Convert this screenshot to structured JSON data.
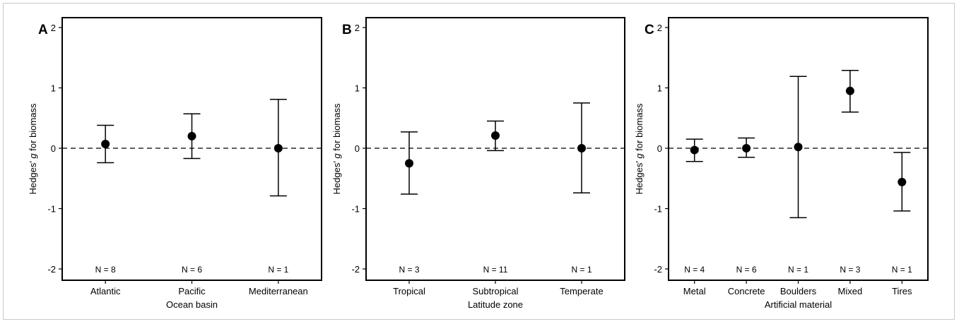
{
  "chart_data": [
    {
      "type": "scatter",
      "panel_label": "A",
      "categories": [
        "Atlantic",
        "Pacific",
        "Mediterranean"
      ],
      "values": [
        0.07,
        0.2,
        0.0
      ],
      "ci_upper": [
        0.38,
        0.57,
        0.81
      ],
      "ci_lower": [
        -0.24,
        -0.17,
        -0.79
      ],
      "n_labels": [
        "N = 8",
        "N = 6",
        "N = 1"
      ],
      "xlabel": "Ocean basin",
      "ylabel_parts": [
        "Hedges' ",
        "g",
        " for biomass"
      ],
      "ylim": [
        -2,
        2
      ],
      "yticks": [
        2,
        1,
        0,
        -1,
        -2
      ],
      "reference_line": 0
    },
    {
      "type": "scatter",
      "panel_label": "B",
      "categories": [
        "Tropical",
        "Subtropical",
        "Temperate"
      ],
      "values": [
        -0.25,
        0.21,
        0.0
      ],
      "ci_upper": [
        0.27,
        0.45,
        0.75
      ],
      "ci_lower": [
        -0.76,
        -0.04,
        -0.74
      ],
      "n_labels": [
        "N = 3",
        "N = 11",
        "N = 1"
      ],
      "xlabel": "Latitude zone",
      "ylabel_parts": [
        "Hedges' ",
        "g",
        " for biomass"
      ],
      "ylim": [
        -2,
        2
      ],
      "yticks": [
        2,
        1,
        0,
        -1,
        -2
      ],
      "reference_line": 0
    },
    {
      "type": "scatter",
      "panel_label": "C",
      "categories": [
        "Metal",
        "Concrete",
        "Boulders",
        "Mixed",
        "Tires"
      ],
      "values": [
        -0.03,
        0.0,
        0.02,
        0.95,
        -0.56
      ],
      "ci_upper": [
        0.15,
        0.17,
        1.19,
        1.29,
        -0.07
      ],
      "ci_lower": [
        -0.22,
        -0.15,
        -1.15,
        0.6,
        -1.04
      ],
      "n_labels": [
        "N = 4",
        "N = 6",
        "N = 1",
        "N = 3",
        "N = 1"
      ],
      "xlabel": "Artificial material",
      "ylabel_parts": [
        "Hedges' ",
        "g",
        " for biomass"
      ],
      "ylim": [
        -2,
        2
      ],
      "yticks": [
        2,
        1,
        0,
        -1,
        -2
      ],
      "reference_line": 0
    }
  ],
  "colors": {
    "marks": "#000000",
    "background": "#ffffff",
    "frame": "#c8c8c8"
  }
}
